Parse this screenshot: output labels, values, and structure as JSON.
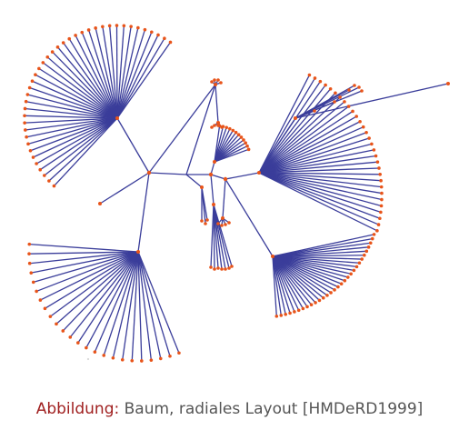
{
  "caption": {
    "label": "Abbildung:",
    "text": "Baum, radiales Layout [HMDeRD1999]"
  },
  "tree": {
    "edge_color": "#3a3d9a",
    "node_color": "#e8541a",
    "leaf_color_alt": "#8ac73a",
    "style": "radial-layout"
  }
}
